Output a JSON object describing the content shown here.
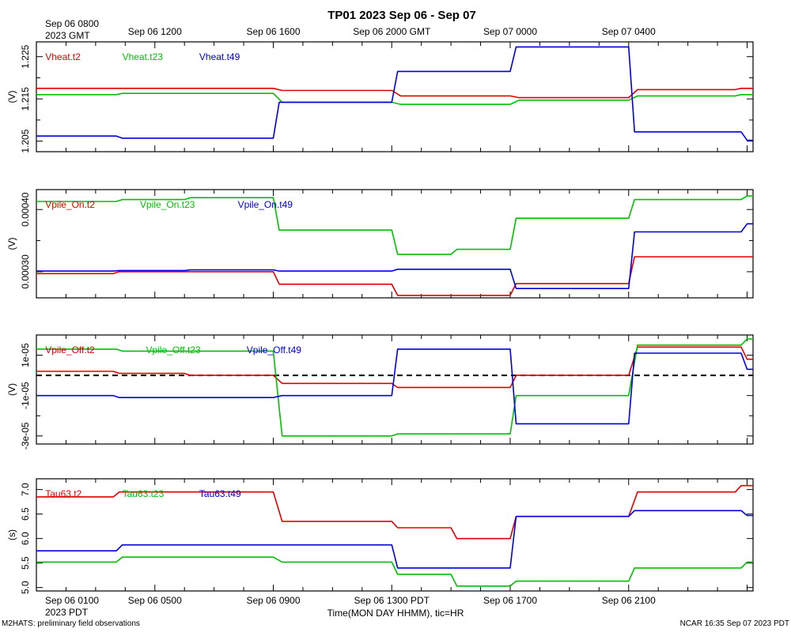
{
  "title": "TP01 2023 Sep 06 - Sep 07",
  "colors": {
    "t2": "#e00000",
    "t23": "#00c000",
    "t49": "#0000dd"
  },
  "top_axis": {
    "first_label": [
      "Sep 06 0800",
      "2023 GMT"
    ],
    "labels": [
      {
        "hour": 4,
        "text": "Sep 06 1200"
      },
      {
        "hour": 8,
        "text": "Sep 06 1600"
      },
      {
        "hour": 12,
        "text": "Sep 06 2000 GMT"
      },
      {
        "hour": 16,
        "text": "Sep 07 0000"
      },
      {
        "hour": 20,
        "text": "Sep 07 0400"
      }
    ]
  },
  "bottom_axis": {
    "first_label": [
      "Sep 06 0100",
      "2023 PDT"
    ],
    "labels": [
      {
        "hour": 4,
        "text": "Sep 06 0500"
      },
      {
        "hour": 8,
        "text": "Sep 06 0900"
      },
      {
        "hour": 12,
        "text": "Sep 06 1300 PDT"
      },
      {
        "hour": 16,
        "text": "Sep 06 1700"
      },
      {
        "hour": 20,
        "text": "Sep 06 2100"
      }
    ],
    "xlabel": "Time(MON DAY HHMM), tic=HR"
  },
  "footer_left": "M2HATS: preliminary field observations",
  "footer_right": "NCAR 16:35 Sep 07 2023 PDT",
  "chart_data": [
    {
      "type": "line",
      "ylabel": "(V)",
      "xlim": [
        0,
        24.2
      ],
      "ylim": [
        1.2025,
        1.2285
      ],
      "ticks": [
        {
          "v": 1.205,
          "t": "1.205"
        },
        {
          "v": 1.215,
          "t": "1.215"
        },
        {
          "v": 1.225,
          "t": "1.225"
        }
      ],
      "minor_ticks": [
        1.21,
        1.22
      ],
      "series": [
        {
          "name": "Vheat.t2",
          "key": "t2",
          "x": [
            0,
            8.0,
            8.3,
            12.0,
            12.3,
            16.0,
            16.3,
            20.0,
            20.3,
            23.6,
            23.8,
            24.2
          ],
          "y": [
            1.2175,
            1.2175,
            1.217,
            1.217,
            1.2157,
            1.2157,
            1.2153,
            1.2153,
            1.2172,
            1.2172,
            1.2175,
            1.2175
          ]
        },
        {
          "name": "Vheat.t23",
          "key": "t23",
          "x": [
            0,
            2.7,
            2.9,
            8.0,
            8.3,
            12.0,
            12.3,
            16.0,
            16.3,
            20.0,
            20.3,
            23.6,
            23.8,
            24.2
          ],
          "y": [
            1.216,
            1.216,
            1.2163,
            1.2163,
            1.2142,
            1.2142,
            1.2137,
            1.2137,
            1.2147,
            1.2147,
            1.2157,
            1.2157,
            1.216,
            1.216
          ]
        },
        {
          "name": "Vheat.t49",
          "key": "t49",
          "x": [
            0,
            2.7,
            2.9,
            8.0,
            8.2,
            12.0,
            12.2,
            16.0,
            16.2,
            20.0,
            20.2,
            23.8,
            24.0,
            24.2
          ],
          "y": [
            1.2062,
            1.2062,
            1.2057,
            1.2057,
            1.2142,
            1.2142,
            1.2215,
            1.2215,
            1.2273,
            1.2273,
            1.2072,
            1.2072,
            1.2052,
            1.2052
          ]
        }
      ],
      "legend": [
        {
          "name": "Vheat.t2",
          "key": "t2",
          "hour": 0.3
        },
        {
          "name": "Vheat.t23",
          "key": "t23",
          "hour": 2.9
        },
        {
          "name": "Vheat.t49",
          "key": "t49",
          "hour": 5.5
        }
      ]
    },
    {
      "type": "line",
      "ylabel": "(V)",
      "xlim": [
        0,
        24.2
      ],
      "ylim": [
        0.000258,
        0.000432
      ],
      "ticks": [
        {
          "v": 0.0003,
          "t": "0.00030"
        },
        {
          "v": 0.0004,
          "t": "0.00040"
        }
      ],
      "minor_ticks": [
        0.00035
      ],
      "series": [
        {
          "name": "Vpile_On.t2",
          "key": "t2",
          "x": [
            0,
            2.6,
            2.8,
            8.0,
            8.2,
            12.0,
            12.2,
            16.0,
            16.2,
            20.0,
            20.2,
            24.2
          ],
          "y": [
            0.000297,
            0.000297,
            0.0003,
            0.0003,
            0.00028,
            0.00028,
            0.000262,
            0.000262,
            0.000281,
            0.000281,
            0.000324,
            0.000324
          ]
        },
        {
          "name": "Vpile_On.t23",
          "key": "t23",
          "x": [
            0,
            2.7,
            2.9,
            5.0,
            5.2,
            8.0,
            8.2,
            12.0,
            12.2,
            14.0,
            14.2,
            16.0,
            16.2,
            20.0,
            20.2,
            23.8,
            24.0,
            24.2
          ],
          "y": [
            0.000413,
            0.000413,
            0.000416,
            0.000416,
            0.000419,
            0.000419,
            0.000367,
            0.000367,
            0.000328,
            0.000328,
            0.000336,
            0.000336,
            0.000386,
            0.000386,
            0.000416,
            0.000416,
            0.000422,
            0.000422
          ]
        },
        {
          "name": "Vpile_On.t49",
          "key": "t49",
          "x": [
            0,
            2.6,
            2.8,
            5.0,
            5.2,
            8.0,
            8.2,
            12.0,
            12.2,
            16.0,
            16.2,
            20.0,
            20.2,
            23.8,
            24.0,
            24.2
          ],
          "y": [
            0.000301,
            0.000301,
            0.000302,
            0.000302,
            0.000303,
            0.000303,
            0.000301,
            0.000301,
            0.000304,
            0.000304,
            0.000273,
            0.000273,
            0.000364,
            0.000364,
            0.000377,
            0.000377
          ]
        }
      ],
      "legend": [
        {
          "name": "Vpile_On.t2",
          "key": "t2",
          "hour": 0.3
        },
        {
          "name": "Vpile_On.t23",
          "key": "t23",
          "hour": 3.5
        },
        {
          "name": "Vpile_On.t49",
          "key": "t49",
          "hour": 6.8
        }
      ]
    },
    {
      "type": "line",
      "ylabel": "(V)",
      "xlim": [
        0,
        24.2
      ],
      "ylim": [
        -3.4e-05,
        2e-05
      ],
      "ticks": [
        {
          "v": -3e-05,
          "t": "-3e-05"
        },
        {
          "v": -1e-05,
          "t": "-1e-05"
        },
        {
          "v": 1e-05,
          "t": "1e-05"
        }
      ],
      "minor_ticks": [
        -2e-05,
        0
      ],
      "dashed_zero": true,
      "series": [
        {
          "name": "Vpile_Off.t2",
          "key": "t2",
          "x": [
            0,
            2.6,
            2.8,
            5.0,
            5.2,
            8.0,
            8.3,
            12.0,
            12.2,
            16.0,
            16.2,
            20.0,
            20.3,
            23.8,
            24.0,
            24.2
          ],
          "y": [
            2e-06,
            2e-06,
            1e-06,
            1e-06,
            0,
            0,
            -4e-06,
            -4e-06,
            -6e-06,
            -6e-06,
            0,
            0,
            1.4e-05,
            1.4e-05,
            8e-06,
            8e-06
          ]
        },
        {
          "name": "Vpile_Off.t23",
          "key": "t23",
          "x": [
            0,
            2.7,
            2.9,
            8.0,
            8.3,
            12.0,
            12.2,
            16.0,
            16.2,
            20.0,
            20.3,
            23.8,
            24.0,
            24.2
          ],
          "y": [
            1.3e-05,
            1.3e-05,
            1.2e-05,
            1.2e-05,
            -3e-05,
            -3e-05,
            -2.9e-05,
            -2.9e-05,
            -1e-05,
            -1e-05,
            1.5e-05,
            1.5e-05,
            1.8e-05,
            1.8e-05
          ]
        },
        {
          "name": "Vpile_Off.t49",
          "key": "t49",
          "x": [
            0,
            2.6,
            2.8,
            8.0,
            8.3,
            12.0,
            12.2,
            16.0,
            16.2,
            20.0,
            20.2,
            23.8,
            24.0,
            24.2
          ],
          "y": [
            -1e-05,
            -1e-05,
            -1.1e-05,
            -1.1e-05,
            -1e-05,
            -1e-05,
            1.3e-05,
            1.3e-05,
            -2.4e-05,
            -2.4e-05,
            1.1e-05,
            1.1e-05,
            3e-06,
            3e-06
          ]
        }
      ],
      "legend": [
        {
          "name": "Vpile_Off.t2",
          "key": "t2",
          "hour": 0.3
        },
        {
          "name": "Vpile_Off.t23",
          "key": "t23",
          "hour": 3.7
        },
        {
          "name": "Vpile_Off.t49",
          "key": "t49",
          "hour": 7.1
        }
      ]
    },
    {
      "type": "line",
      "ylabel": "(s)",
      "xlim": [
        0,
        24.2
      ],
      "ylim": [
        4.93,
        7.22
      ],
      "ticks": [
        {
          "v": 5.0,
          "t": "5.0"
        },
        {
          "v": 5.5,
          "t": "5.5"
        },
        {
          "v": 6.0,
          "t": "6.0"
        },
        {
          "v": 6.5,
          "t": "6.5"
        },
        {
          "v": 7.0,
          "t": "7.0"
        }
      ],
      "minor_ticks": [],
      "series": [
        {
          "name": "Tau63.t2",
          "key": "t2",
          "x": [
            0,
            2.6,
            2.8,
            8.0,
            8.3,
            12.0,
            12.2,
            14.0,
            14.2,
            16.0,
            16.2,
            20.0,
            20.3,
            23.6,
            23.8,
            24.2
          ],
          "y": [
            6.85,
            6.85,
            6.95,
            6.95,
            6.35,
            6.35,
            6.22,
            6.22,
            6.0,
            6.0,
            6.45,
            6.45,
            6.95,
            6.95,
            7.08,
            7.08
          ]
        },
        {
          "name": "Tau63.t23",
          "key": "t23",
          "x": [
            0,
            2.7,
            2.9,
            8.0,
            8.3,
            12.0,
            12.2,
            14.0,
            14.2,
            16.0,
            16.2,
            20.0,
            20.2,
            23.8,
            24.0,
            24.2
          ],
          "y": [
            5.52,
            5.52,
            5.62,
            5.62,
            5.52,
            5.52,
            5.27,
            5.27,
            5.03,
            5.03,
            5.13,
            5.13,
            5.4,
            5.4,
            5.52,
            5.52
          ]
        },
        {
          "name": "Tau63.t49",
          "key": "t49",
          "x": [
            0,
            2.7,
            2.9,
            12.0,
            12.2,
            16.0,
            16.2,
            20.0,
            20.2,
            23.8,
            24.0,
            24.2
          ],
          "y": [
            5.75,
            5.75,
            5.87,
            5.87,
            5.4,
            5.4,
            6.45,
            6.45,
            6.57,
            6.57,
            6.47,
            6.47
          ]
        }
      ],
      "legend": [
        {
          "name": "Tau63.t2",
          "key": "t2",
          "hour": 0.3
        },
        {
          "name": "Tau63.t23",
          "key": "t23",
          "hour": 2.9
        },
        {
          "name": "Tau63.t49",
          "key": "t49",
          "hour": 5.5
        }
      ]
    }
  ]
}
